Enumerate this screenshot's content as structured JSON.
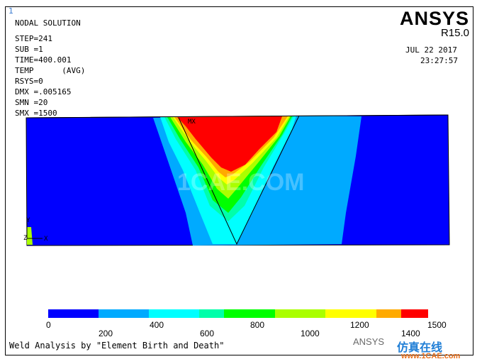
{
  "window": {
    "number": "1"
  },
  "header": {
    "brand": "ANSYS",
    "version": "R15.0",
    "date": "JUL 22 2017",
    "time": "23:27:57"
  },
  "info_lines": [
    "NODAL SOLUTION",
    "",
    "STEP=241",
    "SUB =1",
    "TIME=400.001",
    "TEMP      (AVG)",
    "RSYS=0",
    "DMX =.005165",
    "SMN =20",
    "SMX =1500"
  ],
  "plot_labels": {
    "max_marker": "MX",
    "axis_y": "Y",
    "axis_z": "Z",
    "axis_x": "X"
  },
  "colors": {
    "c1": "#0000ff",
    "c2": "#00aaff",
    "c3": "#00ffff",
    "c4": "#00ffaa",
    "c5": "#00ff00",
    "c6": "#aaff00",
    "c7": "#ffff00",
    "c8": "#ffaa00",
    "c9": "#ff0000"
  },
  "legend": {
    "colors": [
      "#0000ff",
      "#00aaff",
      "#00ffff",
      "#00ffaa",
      "#00ff00",
      "#aaff00",
      "#ffff00",
      "#ffaa00",
      "#ff0000"
    ],
    "ticks_top": [
      "0",
      "400",
      "800",
      "1200",
      "1500"
    ],
    "ticks_bottom": [
      "200",
      "600",
      "1000",
      "1400"
    ]
  },
  "caption": "Weld Analysis by \"Element Birth and Death\"",
  "watermarks": {
    "center": "1CAE.COM",
    "brand": "ANSYS",
    "site_cn": "仿真在线",
    "site": "www.1CAE.com"
  }
}
